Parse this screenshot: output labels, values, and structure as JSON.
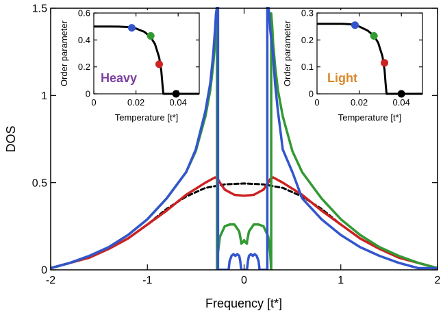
{
  "chart_data": [
    {
      "type": "line",
      "xlabel": "Frequency [t*]",
      "ylabel": "DOS",
      "xlim": [
        -2,
        2
      ],
      "ylim": [
        0,
        1.5
      ],
      "xticks": [
        -2,
        -1,
        0,
        1,
        2
      ],
      "xtick_labels": [
        "-2",
        "-1",
        "0",
        "1",
        "2"
      ],
      "yticks": [
        0,
        0.5,
        1,
        1.5
      ],
      "ytick_labels": [
        "0",
        "0.5",
        "1",
        "1.5"
      ],
      "grid": false,
      "series": [
        {
          "color": "#000000",
          "style": "dashed",
          "x": [
            -2,
            -1.8,
            -1.6,
            -1.4,
            -1.2,
            -1.0,
            -0.8,
            -0.6,
            -0.4,
            -0.2,
            0,
            0.2,
            0.4,
            0.6,
            0.8,
            1.0,
            1.2,
            1.4,
            1.6,
            1.8,
            2
          ],
          "y": [
            0.01,
            0.04,
            0.07,
            0.12,
            0.18,
            0.26,
            0.35,
            0.42,
            0.47,
            0.49,
            0.495,
            0.49,
            0.47,
            0.42,
            0.35,
            0.26,
            0.18,
            0.12,
            0.07,
            0.04,
            0.01
          ]
        },
        {
          "color": "#cc2222",
          "style": "solid",
          "x": [
            -2,
            -1.8,
            -1.6,
            -1.4,
            -1.2,
            -1.0,
            -0.8,
            -0.6,
            -0.4,
            -0.3,
            -0.27,
            -0.25,
            -0.2,
            -0.1,
            0,
            0.1,
            0.2,
            0.25,
            0.27,
            0.3,
            0.4,
            0.6,
            0.8,
            1.0,
            1.2,
            1.4,
            1.6,
            1.8,
            2
          ],
          "y": [
            0.01,
            0.04,
            0.07,
            0.12,
            0.18,
            0.26,
            0.34,
            0.43,
            0.5,
            0.53,
            0.52,
            0.5,
            0.46,
            0.43,
            0.425,
            0.43,
            0.46,
            0.5,
            0.52,
            0.53,
            0.5,
            0.43,
            0.34,
            0.26,
            0.18,
            0.12,
            0.07,
            0.04,
            0.01
          ]
        },
        {
          "color": "#339933",
          "style": "solid",
          "x": [
            -2,
            -1.8,
            -1.6,
            -1.4,
            -1.2,
            -1.0,
            -0.8,
            -0.6,
            -0.5,
            -0.4,
            -0.35,
            -0.32,
            -0.3,
            -0.29,
            -0.28,
            -0.28,
            -0.27,
            -0.25,
            -0.2,
            -0.15,
            -0.1,
            -0.05,
            -0.03,
            -0.03,
            -0.01,
            0,
            0.01,
            0.03,
            0.03,
            0.05,
            0.1,
            0.15,
            0.2,
            0.25,
            0.27,
            0.28,
            0.28,
            0.29,
            0.3,
            0.32,
            0.35,
            0.4,
            0.5,
            0.6,
            0.8,
            1.0,
            1.2,
            1.4,
            1.6,
            1.8,
            2
          ],
          "y": [
            0.01,
            0.04,
            0.08,
            0.13,
            0.2,
            0.29,
            0.41,
            0.56,
            0.68,
            0.88,
            1.03,
            1.17,
            1.3,
            1.4,
            1.47,
            0,
            0.1,
            0.19,
            0.25,
            0.26,
            0.26,
            0.22,
            0.16,
            0.15,
            0.16,
            0.17,
            0.16,
            0.15,
            0.16,
            0.22,
            0.26,
            0.26,
            0.25,
            0.19,
            0.1,
            0,
            1.47,
            1.4,
            1.3,
            1.17,
            1.03,
            0.88,
            0.68,
            0.56,
            0.41,
            0.29,
            0.2,
            0.13,
            0.08,
            0.04,
            0.01
          ]
        },
        {
          "color": "#3355cc",
          "style": "solid",
          "x": [
            -2,
            -1.8,
            -1.6,
            -1.4,
            -1.2,
            -1.0,
            -0.8,
            -0.6,
            -0.5,
            -0.4,
            -0.35,
            -0.32,
            -0.3,
            -0.29,
            -0.27,
            -0.27,
            -0.16,
            -0.15,
            -0.13,
            -0.11,
            -0.09,
            -0.09,
            -0.07,
            -0.05,
            -0.04,
            -0.03,
            -0.03,
            0.03,
            0.03,
            0.04,
            0.05,
            0.07,
            0.09,
            0.09,
            0.11,
            0.13,
            0.15,
            0.16,
            0.24,
            0.24,
            0.26,
            0.27,
            0.3,
            0.32,
            0.35,
            0.4,
            0.5,
            0.6,
            0.8,
            1.0,
            1.2,
            1.4,
            1.6,
            1.8,
            2
          ],
          "y": [
            0.01,
            0.04,
            0.08,
            0.13,
            0.2,
            0.29,
            0.41,
            0.56,
            0.69,
            0.91,
            1.07,
            1.23,
            1.38,
            1.47,
            1.55,
            0,
            0,
            0.05,
            0.08,
            0.09,
            0.08,
            0.08,
            0.09,
            0.08,
            0.05,
            0,
            0,
            0,
            0,
            0.05,
            0.08,
            0.09,
            0.08,
            0.08,
            0.09,
            0.08,
            0.05,
            0,
            0,
            1.55,
            1.47,
            1.38,
            1.23,
            1.07,
            0.91,
            0.69,
            0.56,
            0.41,
            0.29,
            0.2,
            0.13,
            0.08,
            0.04,
            0.01,
            0.01
          ]
        }
      ]
    },
    {
      "type": "line",
      "xlabel": "Temperature [t*]",
      "ylabel": "Order parameter",
      "annotation": "Heavy",
      "annotation_color": "#7b3fa0",
      "xlim": [
        0,
        0.05
      ],
      "ylim": [
        0,
        0.6
      ],
      "xticks": [
        0,
        0.02,
        0.04
      ],
      "xtick_labels": [
        "0",
        "0.02",
        "0.04"
      ],
      "yticks": [
        0,
        0.2,
        0.4,
        0.6
      ],
      "ytick_labels": [
        "0",
        "0.2",
        "0.4",
        "0.6"
      ],
      "curve": {
        "color": "#000000",
        "x": [
          0,
          0.004,
          0.008,
          0.012,
          0.016,
          0.02,
          0.024,
          0.027,
          0.029,
          0.031,
          0.032,
          0.0325,
          0.033,
          0.04,
          0.05
        ],
        "y": [
          0.5,
          0.5,
          0.5,
          0.499,
          0.496,
          0.485,
          0.46,
          0.42,
          0.37,
          0.27,
          0.17,
          0.08,
          0,
          0,
          0
        ]
      },
      "points": [
        {
          "x": 0.018,
          "y": 0.49,
          "color": "#3355cc"
        },
        {
          "x": 0.027,
          "y": 0.43,
          "color": "#339933"
        },
        {
          "x": 0.031,
          "y": 0.22,
          "color": "#cc2222"
        },
        {
          "x": 0.039,
          "y": 0.0,
          "color": "#000000"
        }
      ]
    },
    {
      "type": "line",
      "xlabel": "Temperature [t*]",
      "ylabel": "Order parameter",
      "annotation": "Light",
      "annotation_color": "#d9892b",
      "xlim": [
        0,
        0.05
      ],
      "ylim": [
        0,
        0.3
      ],
      "xticks": [
        0,
        0.02,
        0.04
      ],
      "xtick_labels": [
        "0",
        "0.02",
        "0.04"
      ],
      "yticks": [
        0,
        0.1,
        0.2,
        0.3
      ],
      "ytick_labels": [
        "0",
        "0.1",
        "0.2",
        "0.3"
      ],
      "curve": {
        "color": "#000000",
        "x": [
          0,
          0.004,
          0.008,
          0.012,
          0.016,
          0.02,
          0.024,
          0.027,
          0.029,
          0.031,
          0.032,
          0.0325,
          0.033,
          0.04,
          0.05
        ],
        "y": [
          0.26,
          0.26,
          0.26,
          0.26,
          0.258,
          0.25,
          0.235,
          0.215,
          0.19,
          0.14,
          0.09,
          0.04,
          0,
          0,
          0
        ]
      },
      "points": [
        {
          "x": 0.018,
          "y": 0.255,
          "color": "#3355cc"
        },
        {
          "x": 0.027,
          "y": 0.215,
          "color": "#339933"
        },
        {
          "x": 0.032,
          "y": 0.115,
          "color": "#cc2222"
        },
        {
          "x": 0.04,
          "y": 0.0,
          "color": "#000000"
        }
      ]
    }
  ]
}
